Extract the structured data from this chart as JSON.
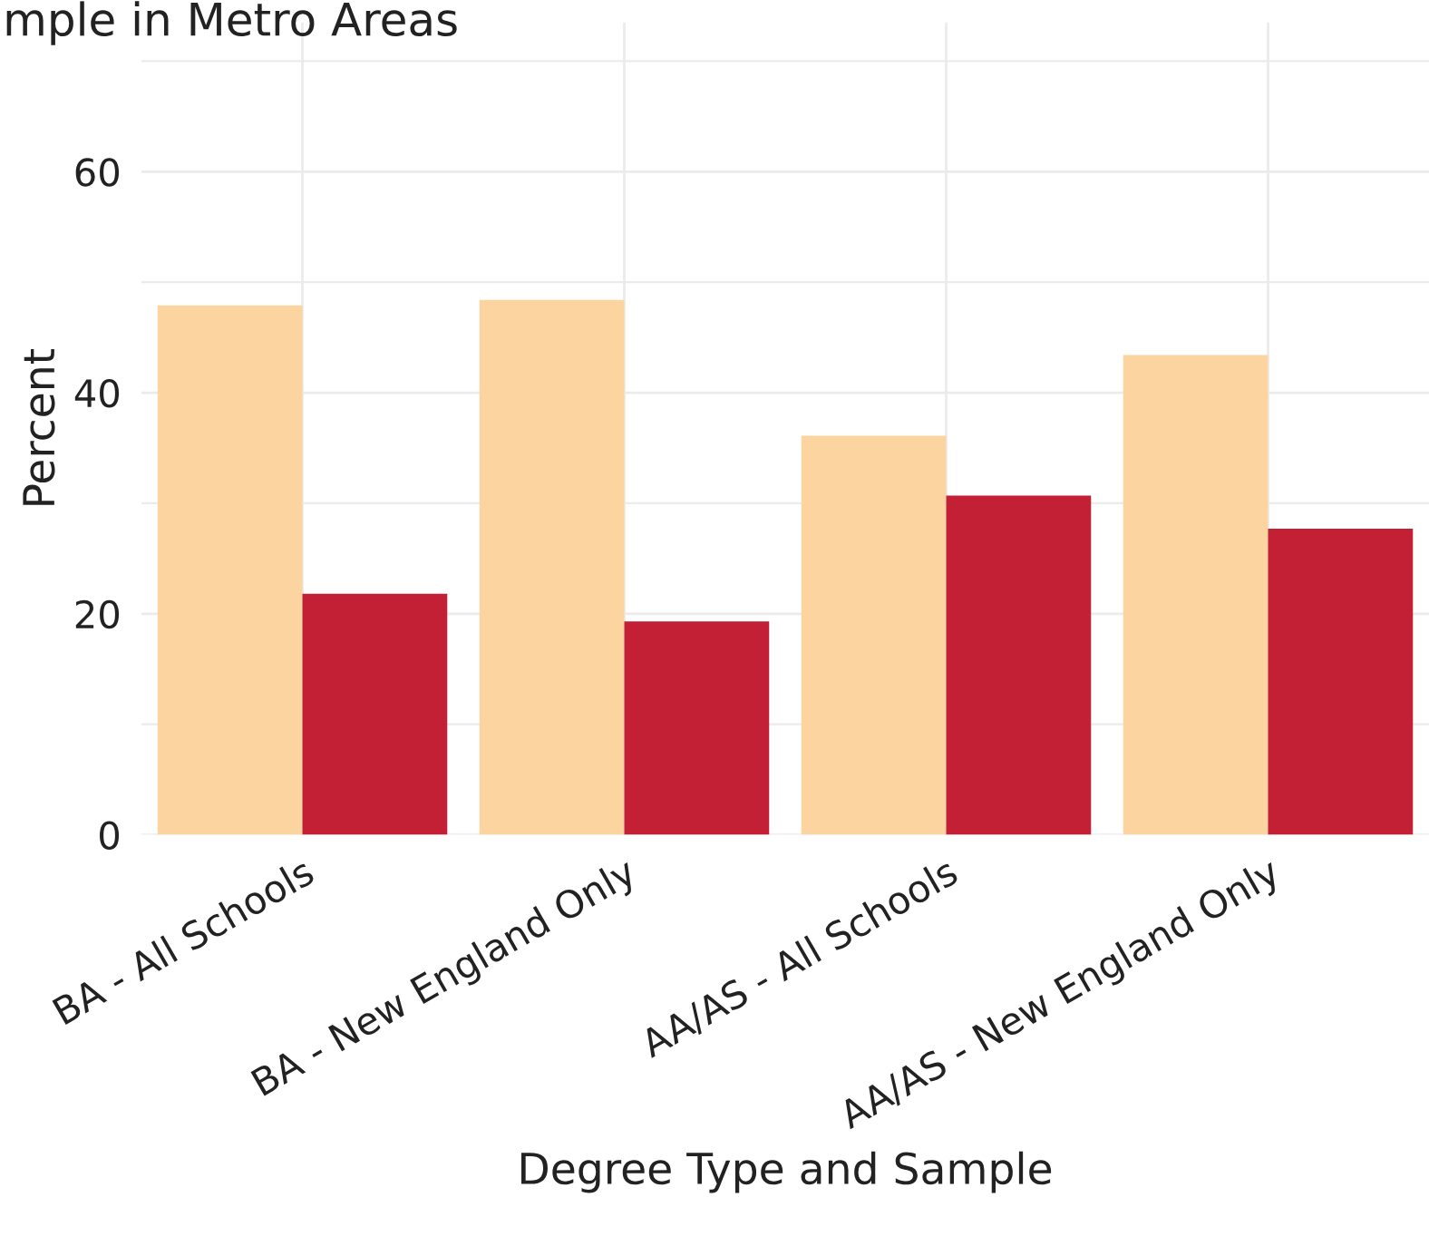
{
  "chart_data": {
    "type": "bar",
    "title": "mple in Metro Areas",
    "xlabel": "Degree Type and Sample",
    "ylabel": "Percent",
    "categories": [
      "BA - All Schools",
      "BA - New England Only",
      "AA/AS - All Schools",
      "AA/AS - New England Only"
    ],
    "series": [
      {
        "color": "#fcd49f",
        "values": [
          47.9,
          48.4,
          36.1,
          43.4
        ]
      },
      {
        "color": "#c32036",
        "values": [
          21.8,
          19.3,
          30.7,
          27.7
        ]
      }
    ],
    "ylim": [
      0,
      73.5
    ],
    "yticks": [
      0,
      20,
      40,
      60
    ],
    "grid": true
  }
}
